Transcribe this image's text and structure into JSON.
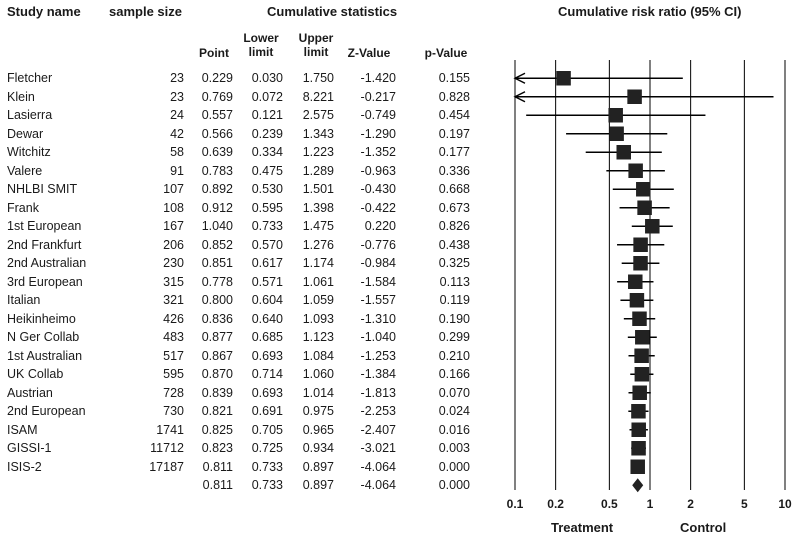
{
  "headers": {
    "study_name": "Study name",
    "sample_size": "sample size",
    "cumulative_statistics": "Cumulative statistics",
    "point": "Point",
    "lower_limit": "Lower limit",
    "upper_limit": "Upper limit",
    "z_value": "Z-Value",
    "p_value": "p-Value",
    "plot_title": "Cumulative risk ratio (95% CI)"
  },
  "footer": {
    "treatment": "Treatment",
    "control": "Control"
  },
  "chart_data": {
    "type": "forest",
    "title": "Cumulative risk ratio (95% CI)",
    "x_scale": "log",
    "xlim": [
      0.1,
      10
    ],
    "ticks": [
      0.1,
      0.2,
      0.5,
      1,
      2,
      5,
      10
    ],
    "tick_labels": [
      "0.1",
      "0.2",
      "0.5",
      "1",
      "2",
      "5",
      "10"
    ],
    "reference_line": 1,
    "rows": [
      {
        "study": "Fletcher",
        "n": "23",
        "point": "0.229",
        "lower": "0.030",
        "upper": "1.750",
        "z": "-1.420",
        "p": "0.155"
      },
      {
        "study": "Klein",
        "n": "23",
        "point": "0.769",
        "lower": "0.072",
        "upper": "8.221",
        "z": "-0.217",
        "p": "0.828"
      },
      {
        "study": "Lasierra",
        "n": "24",
        "point": "0.557",
        "lower": "0.121",
        "upper": "2.575",
        "z": "-0.749",
        "p": "0.454"
      },
      {
        "study": "Dewar",
        "n": "42",
        "point": "0.566",
        "lower": "0.239",
        "upper": "1.343",
        "z": "-1.290",
        "p": "0.197"
      },
      {
        "study": "Witchitz",
        "n": "58",
        "point": "0.639",
        "lower": "0.334",
        "upper": "1.223",
        "z": "-1.352",
        "p": "0.177"
      },
      {
        "study": "Valere",
        "n": "91",
        "point": "0.783",
        "lower": "0.475",
        "upper": "1.289",
        "z": "-0.963",
        "p": "0.336"
      },
      {
        "study": "NHLBI SMIT",
        "n": "107",
        "point": "0.892",
        "lower": "0.530",
        "upper": "1.501",
        "z": "-0.430",
        "p": "0.668"
      },
      {
        "study": "Frank",
        "n": "108",
        "point": "0.912",
        "lower": "0.595",
        "upper": "1.398",
        "z": "-0.422",
        "p": "0.673"
      },
      {
        "study": "1st European",
        "n": "167",
        "point": "1.040",
        "lower": "0.733",
        "upper": "1.475",
        "z": "0.220",
        "p": "0.826"
      },
      {
        "study": "2nd Frankfurt",
        "n": "206",
        "point": "0.852",
        "lower": "0.570",
        "upper": "1.276",
        "z": "-0.776",
        "p": "0.438"
      },
      {
        "study": "2nd Australian",
        "n": "230",
        "point": "0.851",
        "lower": "0.617",
        "upper": "1.174",
        "z": "-0.984",
        "p": "0.325"
      },
      {
        "study": "3rd European",
        "n": "315",
        "point": "0.778",
        "lower": "0.571",
        "upper": "1.061",
        "z": "-1.584",
        "p": "0.113"
      },
      {
        "study": "Italian",
        "n": "321",
        "point": "0.800",
        "lower": "0.604",
        "upper": "1.059",
        "z": "-1.557",
        "p": "0.119"
      },
      {
        "study": "Heikinheimo",
        "n": "426",
        "point": "0.836",
        "lower": "0.640",
        "upper": "1.093",
        "z": "-1.310",
        "p": "0.190"
      },
      {
        "study": "N Ger Collab",
        "n": "483",
        "point": "0.877",
        "lower": "0.685",
        "upper": "1.123",
        "z": "-1.040",
        "p": "0.299"
      },
      {
        "study": "1st Australian",
        "n": "517",
        "point": "0.867",
        "lower": "0.693",
        "upper": "1.084",
        "z": "-1.253",
        "p": "0.210"
      },
      {
        "study": "UK Collab",
        "n": "595",
        "point": "0.870",
        "lower": "0.714",
        "upper": "1.060",
        "z": "-1.384",
        "p": "0.166"
      },
      {
        "study": "Austrian",
        "n": "728",
        "point": "0.839",
        "lower": "0.693",
        "upper": "1.014",
        "z": "-1.813",
        "p": "0.070"
      },
      {
        "study": "2nd European",
        "n": "730",
        "point": "0.821",
        "lower": "0.691",
        "upper": "0.975",
        "z": "-2.253",
        "p": "0.024"
      },
      {
        "study": "ISAM",
        "n": "1741",
        "point": "0.825",
        "lower": "0.705",
        "upper": "0.965",
        "z": "-2.407",
        "p": "0.016"
      },
      {
        "study": "GISSI-1",
        "n": "11712",
        "point": "0.823",
        "lower": "0.725",
        "upper": "0.934",
        "z": "-3.021",
        "p": "0.003"
      },
      {
        "study": "ISIS-2",
        "n": "17187",
        "point": "0.811",
        "lower": "0.733",
        "upper": "0.897",
        "z": "-4.064",
        "p": "0.000"
      }
    ],
    "summary": {
      "point": "0.811",
      "lower": "0.733",
      "upper": "0.897",
      "z": "-4.064",
      "p": "0.000"
    }
  }
}
